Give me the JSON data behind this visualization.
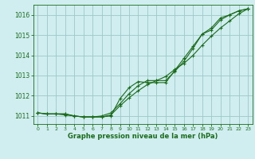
{
  "xlabel": "Graphe pression niveau de la mer (hPa)",
  "ylim": [
    1010.6,
    1016.5
  ],
  "xlim": [
    -0.5,
    23.5
  ],
  "yticks": [
    1011,
    1012,
    1013,
    1014,
    1015,
    1016
  ],
  "xticks": [
    0,
    1,
    2,
    3,
    4,
    5,
    6,
    7,
    8,
    9,
    10,
    11,
    12,
    13,
    14,
    15,
    16,
    17,
    18,
    19,
    20,
    21,
    22,
    23
  ],
  "bg_color": "#d0eef0",
  "line_color": "#1a6b1a",
  "grid_color": "#9cc8c8",
  "line1": [
    1011.15,
    1011.1,
    1011.1,
    1011.1,
    1011.0,
    1010.95,
    1010.95,
    1010.95,
    1011.05,
    1011.5,
    1011.9,
    1012.25,
    1012.55,
    1012.75,
    1012.95,
    1013.3,
    1013.6,
    1014.0,
    1014.5,
    1014.95,
    1015.35,
    1015.7,
    1016.05,
    1016.3
  ],
  "line2": [
    1011.15,
    1011.1,
    1011.1,
    1011.05,
    1011.0,
    1010.95,
    1010.95,
    1011.0,
    1011.15,
    1011.6,
    1012.1,
    1012.5,
    1012.75,
    1012.75,
    1012.75,
    1013.2,
    1013.7,
    1014.35,
    1015.05,
    1015.25,
    1015.75,
    1016.0,
    1016.2,
    1016.3
  ],
  "line3": [
    1011.15,
    1011.1,
    1011.1,
    1011.1,
    1011.0,
    1010.95,
    1010.95,
    1010.95,
    1011.0,
    1011.85,
    1012.4,
    1012.7,
    1012.65,
    1012.65,
    1012.65,
    1013.25,
    1013.85,
    1014.45,
    1015.05,
    1015.35,
    1015.85,
    1016.0,
    1016.2,
    1016.3
  ]
}
